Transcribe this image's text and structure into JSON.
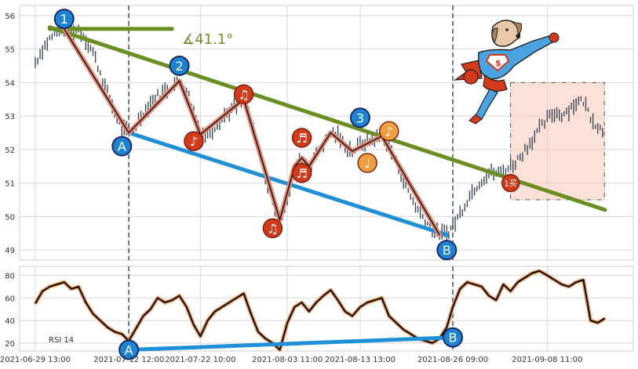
{
  "chart_data": [
    {
      "type": "candlestick",
      "panel": "price",
      "ylim": [
        48.7,
        56.3
      ],
      "yticks": [
        49,
        50,
        51,
        52,
        53,
        54,
        55,
        56
      ],
      "x_range": [
        "2021-06-27 09:00",
        "2021-09-20 09:00"
      ],
      "xtick_labels": [
        "2021-06-29 13:00",
        "2021-07-12 12:00",
        "2021-07-22 10:00",
        "2021-08-03 11:00",
        "2021-08-13 13:00",
        "2021-08-26 09:00",
        "2021-09-08 11:00"
      ],
      "grid": true,
      "price_series": [
        [
          "2021-06-29 13:00",
          54.6
        ],
        [
          "2021-06-30 13:00",
          55.0
        ],
        [
          "2021-07-01 13:00",
          55.3
        ],
        [
          "2021-07-02 13:00",
          55.5
        ],
        [
          "2021-07-03 13:00",
          55.6
        ],
        [
          "2021-07-04 13:00",
          55.55
        ],
        [
          "2021-07-05 13:00",
          55.6
        ],
        [
          "2021-07-06 13:00",
          55.3
        ],
        [
          "2021-07-07 13:00",
          54.9
        ],
        [
          "2021-07-08 13:00",
          54.3
        ],
        [
          "2021-07-09 13:00",
          53.7
        ],
        [
          "2021-07-10 13:00",
          53.1
        ],
        [
          "2021-07-11 13:00",
          52.6
        ],
        [
          "2021-07-12 12:00",
          52.5
        ],
        [
          "2021-07-13 12:00",
          52.75
        ],
        [
          "2021-07-14 12:00",
          53.1
        ],
        [
          "2021-07-15 12:00",
          53.4
        ],
        [
          "2021-07-16 12:00",
          53.6
        ],
        [
          "2021-07-17 12:00",
          53.75
        ],
        [
          "2021-07-18 12:00",
          53.9
        ],
        [
          "2021-07-19 12:00",
          54.05
        ],
        [
          "2021-07-20 12:00",
          53.8
        ],
        [
          "2021-07-21 12:00",
          53.2
        ],
        [
          "2021-07-22 10:00",
          52.5
        ],
        [
          "2021-07-23 10:00",
          52.45
        ],
        [
          "2021-07-24 10:00",
          52.7
        ],
        [
          "2021-07-25 10:00",
          52.95
        ],
        [
          "2021-07-26 10:00",
          53.15
        ],
        [
          "2021-07-27 10:00",
          53.3
        ],
        [
          "2021-07-28 10:00",
          53.5
        ],
        [
          "2021-07-29 10:00",
          52.8
        ],
        [
          "2021-07-30 10:00",
          52.0
        ],
        [
          "2021-07-31 10:00",
          51.2
        ],
        [
          "2021-08-01 10:00",
          50.4
        ],
        [
          "2021-08-02 10:00",
          49.9
        ],
        [
          "2021-08-03 11:00",
          50.6
        ],
        [
          "2021-08-04 11:00",
          51.4
        ],
        [
          "2021-08-05 11:00",
          51.75
        ],
        [
          "2021-08-06 11:00",
          51.5
        ],
        [
          "2021-08-07 11:00",
          51.9
        ],
        [
          "2021-08-08 11:00",
          52.2
        ],
        [
          "2021-08-09 11:00",
          52.5
        ],
        [
          "2021-08-10 11:00",
          52.4
        ],
        [
          "2021-08-11 11:00",
          52.1
        ],
        [
          "2021-08-12 11:00",
          51.95
        ],
        [
          "2021-08-13 13:00",
          52.15
        ],
        [
          "2021-08-14 13:00",
          52.25
        ],
        [
          "2021-08-15 13:00",
          52.3
        ],
        [
          "2021-08-16 13:00",
          52.4
        ],
        [
          "2021-08-17 13:00",
          52.1
        ],
        [
          "2021-08-18 13:00",
          51.6
        ],
        [
          "2021-08-19 13:00",
          51.1
        ],
        [
          "2021-08-20 13:00",
          50.6
        ],
        [
          "2021-08-21 13:00",
          50.2
        ],
        [
          "2021-08-22 13:00",
          49.9
        ],
        [
          "2021-08-23 13:00",
          49.6
        ],
        [
          "2021-08-24 13:00",
          49.45
        ],
        [
          "2021-08-25 13:00",
          49.5
        ],
        [
          "2021-08-26 09:00",
          49.7
        ],
        [
          "2021-08-27 09:00",
          50.1
        ],
        [
          "2021-08-28 09:00",
          50.5
        ],
        [
          "2021-08-29 09:00",
          50.85
        ],
        [
          "2021-08-30 09:00",
          51.1
        ],
        [
          "2021-08-31 09:00",
          51.3
        ],
        [
          "2021-09-01 09:00",
          51.3
        ],
        [
          "2021-09-02 09:00",
          51.35
        ],
        [
          "2021-09-03 09:00",
          51.5
        ],
        [
          "2021-09-04 09:00",
          51.7
        ],
        [
          "2021-09-05 09:00",
          52.0
        ],
        [
          "2021-09-06 09:00",
          52.3
        ],
        [
          "2021-09-07 09:00",
          52.6
        ],
        [
          "2021-09-08 11:00",
          52.9
        ],
        [
          "2021-09-09 11:00",
          53.1
        ],
        [
          "2021-09-10 11:00",
          53.05
        ],
        [
          "2021-09-11 11:00",
          53.2
        ],
        [
          "2021-09-12 11:00",
          53.4
        ],
        [
          "2021-09-13 11:00",
          53.45
        ],
        [
          "2021-09-14 11:00",
          53.0
        ],
        [
          "2021-09-15 11:00",
          52.7
        ],
        [
          "2021-09-16 11:00",
          52.5
        ]
      ],
      "zigzag": [
        [
          "2021-07-03 13:00",
          55.6
        ],
        [
          "2021-07-12 12:00",
          52.5
        ],
        [
          "2021-07-19 12:00",
          54.05
        ],
        [
          "2021-07-22 10:00",
          52.45
        ],
        [
          "2021-07-28 10:00",
          53.5
        ],
        [
          "2021-08-02 10:00",
          49.9
        ],
        [
          "2021-08-04 11:00",
          51.5
        ],
        [
          "2021-08-05 11:00",
          51.75
        ],
        [
          "2021-08-06 11:00",
          51.5
        ],
        [
          "2021-08-09 11:00",
          52.5
        ],
        [
          "2021-08-12 11:00",
          51.95
        ],
        [
          "2021-08-16 13:00",
          52.4
        ],
        [
          "2021-08-24 13:00",
          49.45
        ]
      ],
      "upper_trendline": [
        [
          "2021-07-01 13:00",
          55.65
        ],
        [
          "2021-09-16 11:00",
          50.2
        ]
      ],
      "lower_trendline": [
        [
          "2021-07-12 12:00",
          52.5
        ],
        [
          "2021-08-25 13:00",
          49.45
        ]
      ],
      "horizontal_line": [
        [
          "2021-07-01 13:00",
          55.6
        ],
        [
          "2021-07-18 12:00",
          55.6
        ]
      ],
      "angle_label": "∡41.1°",
      "pivot_markers": [
        {
          "label": "1",
          "x": "2021-07-03 13:00",
          "y": 55.9
        },
        {
          "label": "A",
          "x": "2021-07-11 13:00",
          "y": 52.1
        },
        {
          "label": "2",
          "x": "2021-07-19 12:00",
          "y": 54.5
        },
        {
          "label": "3",
          "x": "2021-08-13 13:00",
          "y": 52.95
        },
        {
          "label": "B",
          "x": "2021-08-25 13:00",
          "y": 49.0
        }
      ],
      "note_markers": [
        {
          "symbol": "♪",
          "x": "2021-07-21 12:00",
          "y": 52.25,
          "color": "#d23a1a"
        },
        {
          "symbol": "♫",
          "x": "2021-07-28 10:00",
          "y": 53.65,
          "color": "#d23a1a"
        },
        {
          "symbol": "♫",
          "x": "2021-08-01 10:00",
          "y": 49.65,
          "color": "#d23a1a"
        },
        {
          "symbol": "♬",
          "x": "2021-08-05 11:00",
          "y": 52.35,
          "color": "#d23a1a"
        },
        {
          "symbol": "♬",
          "x": "2021-08-05 11:00",
          "y": 51.3,
          "color": "#d23a1a"
        },
        {
          "symbol": "♩",
          "x": "2021-08-14 13:00",
          "y": 51.6,
          "color": "#f0a040"
        },
        {
          "symbol": "♪",
          "x": "2021-08-17 13:00",
          "y": 52.55,
          "color": "#f0a040"
        }
      ],
      "buy_marker": {
        "label": "1买",
        "x": "2021-09-03 09:00",
        "y": 51.0
      },
      "vertical_markers": [
        "2021-07-12 12:00",
        "2021-08-26 09:00"
      ],
      "highlight_box": {
        "x0": "2021-09-03 09:00",
        "x1": "2021-09-16 09:00",
        "y0": 50.5,
        "y1": 54.0,
        "color": "#f9c8b8"
      }
    },
    {
      "type": "line",
      "panel": "rsi",
      "ylim": [
        13,
        88
      ],
      "yticks": [
        20,
        40,
        60,
        80
      ],
      "legend_label": "RSI 14",
      "grid": true,
      "series": [
        [
          "2021-06-29 13:00",
          55
        ],
        [
          "2021-06-30 13:00",
          66
        ],
        [
          "2021-07-01 13:00",
          70
        ],
        [
          "2021-07-02 13:00",
          72
        ],
        [
          "2021-07-03 13:00",
          74
        ],
        [
          "2021-07-04 13:00",
          68
        ],
        [
          "2021-07-05 13:00",
          70
        ],
        [
          "2021-07-06 13:00",
          56
        ],
        [
          "2021-07-07 13:00",
          46
        ],
        [
          "2021-07-08 13:00",
          40
        ],
        [
          "2021-07-09 13:00",
          34
        ],
        [
          "2021-07-10 13:00",
          30
        ],
        [
          "2021-07-11 13:00",
          28
        ],
        [
          "2021-07-12 12:00",
          22
        ],
        [
          "2021-07-13 12:00",
          33
        ],
        [
          "2021-07-14 12:00",
          44
        ],
        [
          "2021-07-15 12:00",
          50
        ],
        [
          "2021-07-16 12:00",
          60
        ],
        [
          "2021-07-17 12:00",
          56
        ],
        [
          "2021-07-18 12:00",
          58
        ],
        [
          "2021-07-19 12:00",
          62
        ],
        [
          "2021-07-20 12:00",
          52
        ],
        [
          "2021-07-21 12:00",
          36
        ],
        [
          "2021-07-22 10:00",
          26
        ],
        [
          "2021-07-23 10:00",
          40
        ],
        [
          "2021-07-24 10:00",
          48
        ],
        [
          "2021-07-25 10:00",
          52
        ],
        [
          "2021-07-26 10:00",
          56
        ],
        [
          "2021-07-27 10:00",
          60
        ],
        [
          "2021-07-28 10:00",
          64
        ],
        [
          "2021-07-29 10:00",
          46
        ],
        [
          "2021-07-30 10:00",
          30
        ],
        [
          "2021-07-31 10:00",
          24
        ],
        [
          "2021-08-01 10:00",
          20
        ],
        [
          "2021-08-02 10:00",
          14
        ],
        [
          "2021-08-03 11:00",
          38
        ],
        [
          "2021-08-04 11:00",
          52
        ],
        [
          "2021-08-05 11:00",
          56
        ],
        [
          "2021-08-06 11:00",
          48
        ],
        [
          "2021-08-07 11:00",
          56
        ],
        [
          "2021-08-08 11:00",
          62
        ],
        [
          "2021-08-09 11:00",
          67
        ],
        [
          "2021-08-10 11:00",
          58
        ],
        [
          "2021-08-11 11:00",
          48
        ],
        [
          "2021-08-12 11:00",
          44
        ],
        [
          "2021-08-13 13:00",
          52
        ],
        [
          "2021-08-14 13:00",
          56
        ],
        [
          "2021-08-15 13:00",
          58
        ],
        [
          "2021-08-16 13:00",
          60
        ],
        [
          "2021-08-17 13:00",
          44
        ],
        [
          "2021-08-18 13:00",
          38
        ],
        [
          "2021-08-19 13:00",
          32
        ],
        [
          "2021-08-20 13:00",
          28
        ],
        [
          "2021-08-21 13:00",
          24
        ],
        [
          "2021-08-22 13:00",
          22
        ],
        [
          "2021-08-23 13:00",
          20
        ],
        [
          "2021-08-24 13:00",
          24
        ],
        [
          "2021-08-25 13:00",
          34
        ],
        [
          "2021-08-26 09:00",
          52
        ],
        [
          "2021-08-27 09:00",
          68
        ],
        [
          "2021-08-28 09:00",
          74
        ],
        [
          "2021-08-29 09:00",
          72
        ],
        [
          "2021-08-30 09:00",
          70
        ],
        [
          "2021-08-31 09:00",
          62
        ],
        [
          "2021-09-01 09:00",
          58
        ],
        [
          "2021-09-02 09:00",
          72
        ],
        [
          "2021-09-03 09:00",
          66
        ],
        [
          "2021-09-04 09:00",
          74
        ],
        [
          "2021-09-05 09:00",
          78
        ],
        [
          "2021-09-06 09:00",
          82
        ],
        [
          "2021-09-07 09:00",
          84
        ],
        [
          "2021-09-08 11:00",
          80
        ],
        [
          "2021-09-09 11:00",
          76
        ],
        [
          "2021-09-10 11:00",
          72
        ],
        [
          "2021-09-11 11:00",
          70
        ],
        [
          "2021-09-12 11:00",
          74
        ],
        [
          "2021-09-13 11:00",
          76
        ],
        [
          "2021-09-14 11:00",
          40
        ],
        [
          "2021-09-15 11:00",
          38
        ],
        [
          "2021-09-16 11:00",
          42
        ]
      ],
      "divergence_line": [
        [
          "2021-07-12 12:00",
          14
        ],
        [
          "2021-08-26 09:00",
          25
        ]
      ],
      "divergence_markers": [
        {
          "label": "A",
          "x": "2021-07-12 12:00",
          "y": 14
        },
        {
          "label": "B",
          "x": "2021-08-26 09:00",
          "y": 25
        }
      ]
    }
  ],
  "colors": {
    "candle": "#3a4a5a",
    "zigzag_outer": "#e88870",
    "zigzag_inner": "#1a1a1a",
    "upper_trend": "#6b8e23",
    "lower_trend": "#1f8fd6",
    "pivot_fill": "#1c84d2",
    "pivot_border": "#1a2a6a",
    "rsi_outer": "#f0a060",
    "rsi_inner": "#000000",
    "grid": "#d8d8d8",
    "vline": "#4a5a6a"
  },
  "icons": {
    "mascot": "superhero-dog-icon"
  }
}
